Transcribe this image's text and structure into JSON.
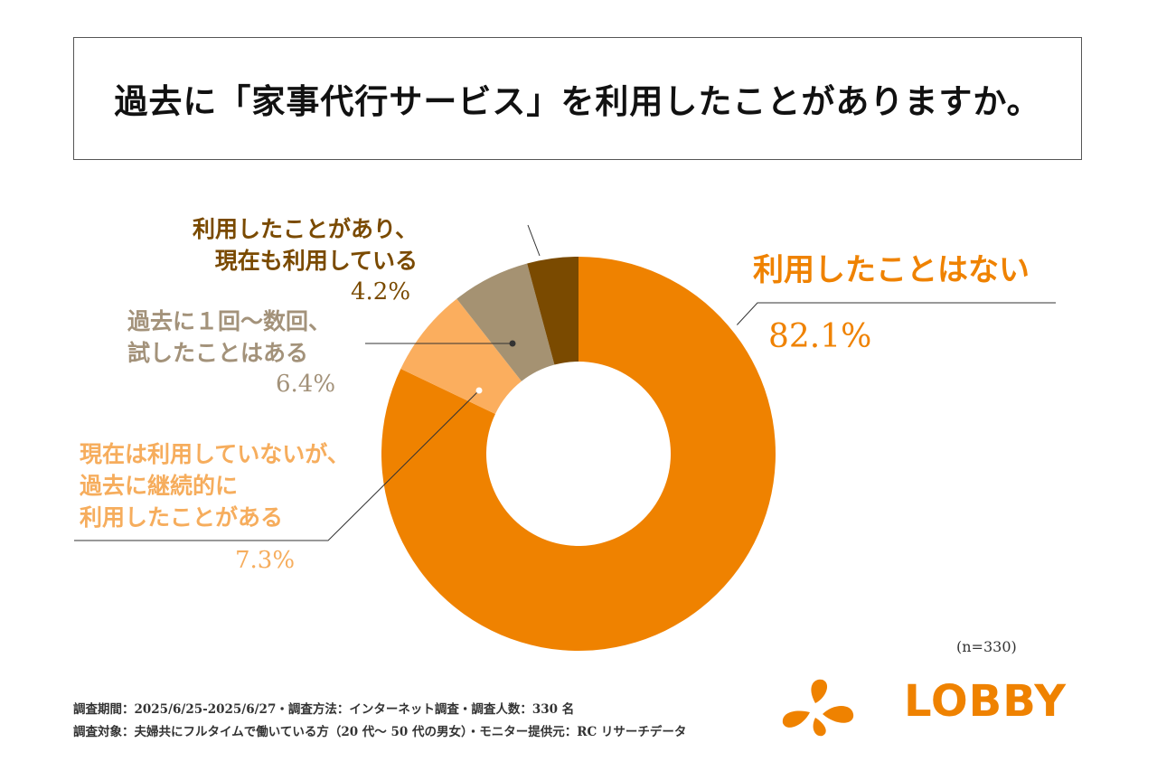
{
  "title": "過去に「家事代行サービス」を利用したことがありますか。",
  "chart_data": {
    "type": "pie",
    "donut": true,
    "slices": [
      {
        "label": "利用したことはない",
        "value": 82.1,
        "value_label": "82.1%",
        "color": "#ef8200"
      },
      {
        "label_lines": [
          "現在は利用していないが、",
          "過去に継続的に",
          "利用したことがある"
        ],
        "value": 7.3,
        "value_label": "7.3%",
        "color": "#fbae5e"
      },
      {
        "label_lines": [
          "過去に１回〜数回、",
          "試したことはある"
        ],
        "value": 6.4,
        "value_label": "6.4%",
        "color": "#a59272"
      },
      {
        "label_lines": [
          "利用したことがあり、",
          "現在も利用している"
        ],
        "value": 4.2,
        "value_label": "4.2%",
        "color": "#7a4a00"
      }
    ]
  },
  "labels": {
    "never": {
      "text": "利用したことはない",
      "pct": "82.1%"
    },
    "still": {
      "line1": "利用したことがあり、",
      "line2": "現在も利用している",
      "pct": "4.2%"
    },
    "tried": {
      "line1": "過去に１回〜数回、",
      "line2": "試したことはある",
      "pct": "6.4%"
    },
    "past": {
      "line1": "現在は利用していないが、",
      "line2": "過去に継続的に",
      "line3": "利用したことがある",
      "pct": "7.3%"
    }
  },
  "sample_note": "(n=330)",
  "footer": {
    "line1": "調査期間：2025/6/25-2025/6/27・調査方法：インターネット調査・調査人数：330 名",
    "line2": "調査対象：夫婦共にフルタイムで働いている方（20 代〜 50 代の男女）・モニター提供元：RC リサーチデータ"
  },
  "logo": {
    "text": "LOBBY",
    "color": "#ef8200"
  }
}
